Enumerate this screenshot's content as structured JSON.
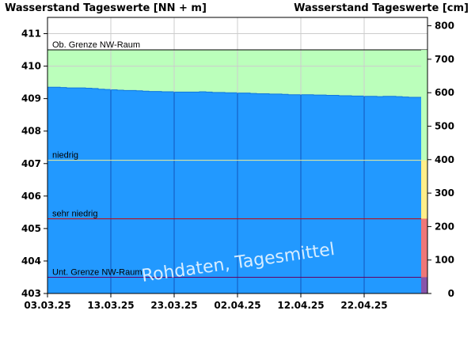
{
  "chart_data": {
    "type": "area",
    "title_left": "Wasserstand Tageswerte [NN + m]",
    "title_right": "Wasserstand Tageswerte [cm]",
    "watermark": "Rohdaten, Tagesmittel",
    "x_tick_labels": [
      "03.03.25",
      "13.03.25",
      "23.03.25",
      "02.04.25",
      "12.04.25",
      "22.04.25"
    ],
    "x_range_days": [
      0,
      60
    ],
    "y_left": {
      "min": 403,
      "max": 411.5,
      "ticks": [
        403,
        404,
        405,
        406,
        407,
        408,
        409,
        410,
        411
      ]
    },
    "y_right": {
      "min": 0,
      "max": 825,
      "ticks": [
        0,
        100,
        200,
        300,
        400,
        500,
        600,
        700,
        800
      ]
    },
    "thresholds": [
      {
        "label": "Ob. Grenze NW-Raum",
        "value": 410.5,
        "line_color": "#000000"
      },
      {
        "label": "niedrig",
        "value": 407.1,
        "line_color": "#eeee99"
      },
      {
        "label": "sehr niedrig",
        "value": 405.3,
        "line_color": "#cc0000"
      },
      {
        "label": "Unt. Grenze NW-Raum",
        "value": 403.5,
        "line_color": "#660066"
      }
    ],
    "series": [
      {
        "x": [
          0,
          1,
          2,
          3,
          4,
          5,
          6,
          7,
          8,
          9,
          10,
          11,
          12,
          13,
          14,
          15,
          16,
          17,
          18,
          19,
          20,
          21,
          22,
          23,
          24,
          25,
          26,
          27,
          28,
          29,
          30,
          31,
          32,
          33,
          34,
          35,
          36,
          37,
          38,
          39,
          40,
          41,
          42,
          43,
          44,
          45,
          46,
          47,
          48,
          49,
          50,
          51,
          52,
          53,
          54,
          55,
          56,
          57,
          58
        ],
        "values": [
          409.35,
          409.35,
          409.34,
          409.33,
          409.33,
          409.33,
          409.32,
          409.31,
          409.29,
          409.28,
          409.27,
          409.26,
          409.25,
          409.25,
          409.24,
          409.23,
          409.22,
          409.22,
          409.21,
          409.21,
          409.2,
          409.2,
          409.2,
          409.2,
          409.21,
          409.2,
          409.19,
          409.19,
          409.18,
          409.18,
          409.17,
          409.17,
          409.16,
          409.15,
          409.15,
          409.14,
          409.14,
          409.13,
          409.12,
          409.12,
          409.12,
          409.12,
          409.11,
          409.11,
          409.1,
          409.1,
          409.09,
          409.09,
          409.08,
          409.08,
          409.07,
          409.07,
          409.06,
          409.07,
          409.07,
          409.06,
          409.05,
          409.04,
          409.04
        ]
      }
    ],
    "colors": {
      "fill": "#2299ff",
      "upper_zone": "#bbffbb",
      "band_green": "#bbffbb",
      "band_yellow": "#ffee88",
      "band_red": "#ee7777",
      "band_purple": "#8855aa",
      "grid": "#cccccc",
      "vgrid_on_fill": "#1155bb"
    }
  }
}
